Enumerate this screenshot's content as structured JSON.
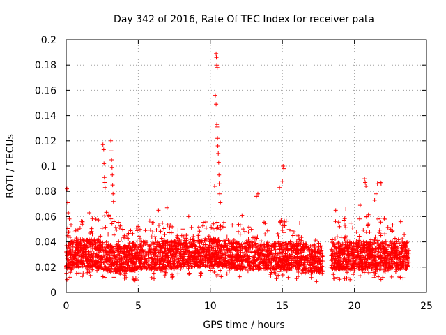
{
  "chart_data": {
    "type": "scatter",
    "title": "Day 342 of 2016, Rate Of TEC Index for receiver pata",
    "xlabel": "GPS time / hours",
    "ylabel": "ROTI / TECUs",
    "xlim": [
      0,
      25
    ],
    "ylim": [
      0,
      0.2
    ],
    "xticks": [
      0,
      5,
      10,
      15,
      20,
      25
    ],
    "xtick_labels": [
      "0",
      "5",
      "10",
      "15",
      "20",
      "25"
    ],
    "yticks": [
      0,
      0.02,
      0.04,
      0.06,
      0.08,
      0.1,
      0.12,
      0.14,
      0.16,
      0.18,
      0.2
    ],
    "ytick_labels": [
      "0",
      "0.02",
      "0.04",
      "0.06",
      "0.08",
      "0.1",
      "0.12",
      "0.14",
      "0.16",
      "0.18",
      "0.2"
    ],
    "grid": true,
    "marker": "+",
    "color": "#ff0000",
    "data_gap_hours": [
      17.8,
      18.4
    ],
    "series": [
      {
        "name": "ROTI",
        "notable_points": [
          {
            "x": 0.05,
            "y": 0.082
          },
          {
            "x": 0.1,
            "y": 0.071
          },
          {
            "x": 0.15,
            "y": 0.063
          },
          {
            "x": 2.55,
            "y": 0.117
          },
          {
            "x": 2.6,
            "y": 0.113
          },
          {
            "x": 2.62,
            "y": 0.102
          },
          {
            "x": 2.65,
            "y": 0.091
          },
          {
            "x": 2.68,
            "y": 0.087
          },
          {
            "x": 2.7,
            "y": 0.083
          },
          {
            "x": 3.1,
            "y": 0.12
          },
          {
            "x": 3.12,
            "y": 0.112
          },
          {
            "x": 3.15,
            "y": 0.105
          },
          {
            "x": 3.18,
            "y": 0.099
          },
          {
            "x": 3.2,
            "y": 0.093
          },
          {
            "x": 3.22,
            "y": 0.085
          },
          {
            "x": 3.25,
            "y": 0.078
          },
          {
            "x": 3.28,
            "y": 0.072
          },
          {
            "x": 10.4,
            "y": 0.189
          },
          {
            "x": 10.42,
            "y": 0.186
          },
          {
            "x": 10.45,
            "y": 0.18
          },
          {
            "x": 10.48,
            "y": 0.178
          },
          {
            "x": 10.35,
            "y": 0.156
          },
          {
            "x": 10.4,
            "y": 0.149
          },
          {
            "x": 10.45,
            "y": 0.133
          },
          {
            "x": 10.47,
            "y": 0.131
          },
          {
            "x": 10.5,
            "y": 0.122
          },
          {
            "x": 10.52,
            "y": 0.116
          },
          {
            "x": 10.55,
            "y": 0.11
          },
          {
            "x": 10.58,
            "y": 0.103
          },
          {
            "x": 10.6,
            "y": 0.093
          },
          {
            "x": 10.62,
            "y": 0.086
          },
          {
            "x": 10.3,
            "y": 0.084
          },
          {
            "x": 10.65,
            "y": 0.078
          },
          {
            "x": 10.7,
            "y": 0.071
          },
          {
            "x": 15.05,
            "y": 0.1
          },
          {
            "x": 15.1,
            "y": 0.098
          },
          {
            "x": 14.8,
            "y": 0.083
          },
          {
            "x": 15.0,
            "y": 0.088
          },
          {
            "x": 13.3,
            "y": 0.078
          },
          {
            "x": 13.2,
            "y": 0.076
          },
          {
            "x": 20.7,
            "y": 0.09
          },
          {
            "x": 20.75,
            "y": 0.087
          },
          {
            "x": 20.8,
            "y": 0.084
          },
          {
            "x": 21.6,
            "y": 0.086
          },
          {
            "x": 21.8,
            "y": 0.087
          },
          {
            "x": 21.85,
            "y": 0.086
          },
          {
            "x": 21.5,
            "y": 0.078
          },
          {
            "x": 21.4,
            "y": 0.073
          },
          {
            "x": 20.4,
            "y": 0.069
          },
          {
            "x": 19.4,
            "y": 0.066
          },
          {
            "x": 18.7,
            "y": 0.065
          },
          {
            "x": 8.5,
            "y": 0.06
          },
          {
            "x": 6.4,
            "y": 0.065
          },
          {
            "x": 7.0,
            "y": 0.067
          },
          {
            "x": 1.6,
            "y": 0.063
          },
          {
            "x": 12.2,
            "y": 0.061
          },
          {
            "x": 16.2,
            "y": 0.055
          },
          {
            "x": 23.2,
            "y": 0.056
          }
        ],
        "baseline_profile": [
          {
            "x": 0,
            "low": 0.01,
            "high": 0.062
          },
          {
            "x": 1,
            "low": 0.012,
            "high": 0.058
          },
          {
            "x": 2,
            "low": 0.012,
            "high": 0.06
          },
          {
            "x": 3,
            "low": 0.008,
            "high": 0.065
          },
          {
            "x": 4,
            "low": 0.008,
            "high": 0.05
          },
          {
            "x": 5,
            "low": 0.01,
            "high": 0.053
          },
          {
            "x": 6,
            "low": 0.01,
            "high": 0.058
          },
          {
            "x": 7,
            "low": 0.01,
            "high": 0.055
          },
          {
            "x": 8,
            "low": 0.012,
            "high": 0.05
          },
          {
            "x": 9,
            "low": 0.012,
            "high": 0.055
          },
          {
            "x": 10,
            "low": 0.013,
            "high": 0.06
          },
          {
            "x": 11,
            "low": 0.012,
            "high": 0.058
          },
          {
            "x": 12,
            "low": 0.01,
            "high": 0.056
          },
          {
            "x": 13,
            "low": 0.01,
            "high": 0.058
          },
          {
            "x": 14,
            "low": 0.01,
            "high": 0.056
          },
          {
            "x": 15,
            "low": 0.01,
            "high": 0.06
          },
          {
            "x": 16,
            "low": 0.01,
            "high": 0.048
          },
          {
            "x": 17,
            "low": 0.008,
            "high": 0.045
          },
          {
            "x": 17.75,
            "low": 0.007,
            "high": 0.04
          },
          {
            "x": 18.45,
            "low": 0.01,
            "high": 0.055
          },
          {
            "x": 19,
            "low": 0.01,
            "high": 0.06
          },
          {
            "x": 20,
            "low": 0.01,
            "high": 0.058
          },
          {
            "x": 21,
            "low": 0.01,
            "high": 0.062
          },
          {
            "x": 22,
            "low": 0.01,
            "high": 0.06
          },
          {
            "x": 23,
            "low": 0.01,
            "high": 0.052
          },
          {
            "x": 23.8,
            "low": 0.01,
            "high": 0.048
          }
        ]
      }
    ]
  }
}
